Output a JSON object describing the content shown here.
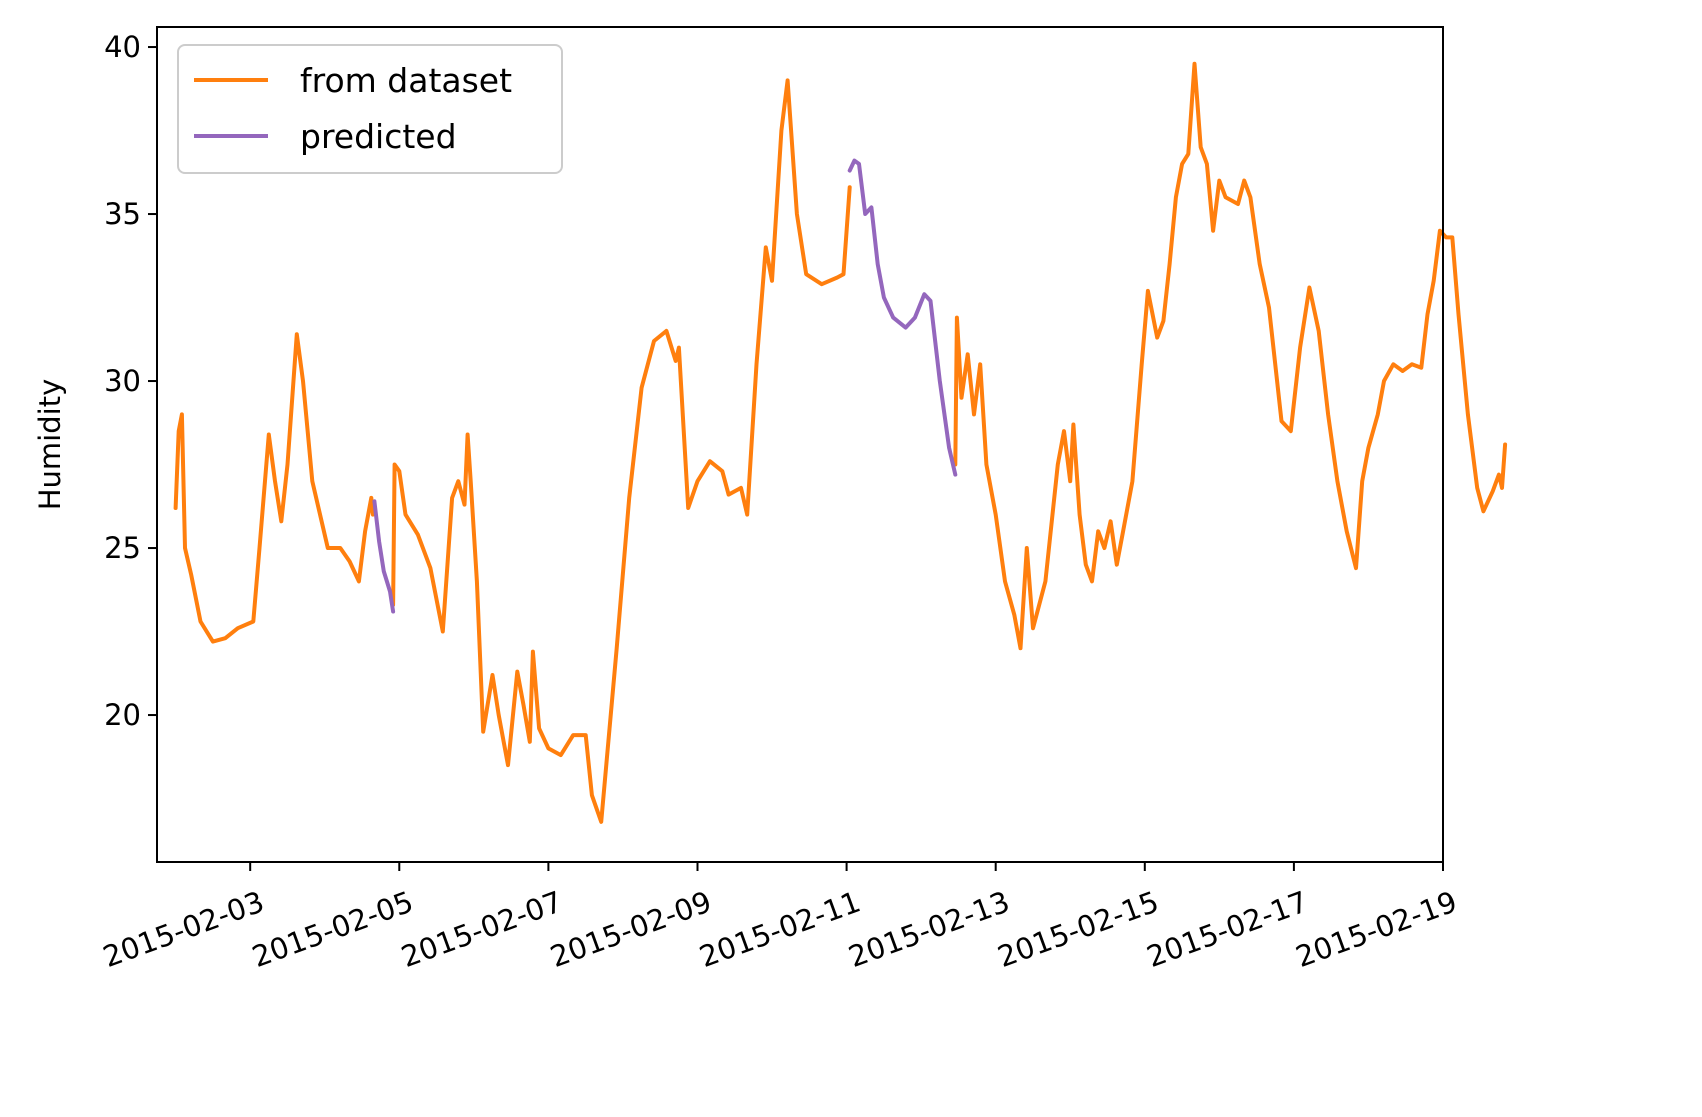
{
  "chart_data": {
    "type": "line",
    "title": "",
    "xlabel": "",
    "ylabel": "Humidity",
    "xlim": [
      "2015-02-01T18:00",
      "2015-02-19T00:00"
    ],
    "ylim": [
      15.6,
      40.6
    ],
    "grid": false,
    "legend_position": "top-left",
    "x_ticks": [
      "2015-02-03",
      "2015-02-05",
      "2015-02-07",
      "2015-02-09",
      "2015-02-11",
      "2015-02-13",
      "2015-02-15",
      "2015-02-17",
      "2015-02-19"
    ],
    "y_ticks": [
      "20",
      "25",
      "30",
      "35",
      "40"
    ],
    "series": [
      {
        "name": "from dataset",
        "color": "#ff7f0e",
        "segments": [
          [
            [
              "2015-02-02T00:00",
              26.2
            ],
            [
              "2015-02-02T01:00",
              28.5
            ],
            [
              "2015-02-02T02:00",
              29.0
            ],
            [
              "2015-02-02T03:00",
              25.0
            ],
            [
              "2015-02-02T05:00",
              24.2
            ],
            [
              "2015-02-02T08:00",
              22.8
            ],
            [
              "2015-02-02T12:00",
              22.2
            ],
            [
              "2015-02-02T16:00",
              22.3
            ],
            [
              "2015-02-02T20:00",
              22.6
            ],
            [
              "2015-02-03T01:00",
              22.8
            ],
            [
              "2015-02-03T03:00",
              25.0
            ],
            [
              "2015-02-03T06:00",
              28.4
            ],
            [
              "2015-02-03T08:00",
              27.0
            ],
            [
              "2015-02-03T10:00",
              25.8
            ],
            [
              "2015-02-03T12:00",
              27.5
            ],
            [
              "2015-02-03T15:00",
              31.4
            ],
            [
              "2015-02-03T17:00",
              30.0
            ],
            [
              "2015-02-03T20:00",
              27.0
            ],
            [
              "2015-02-04T01:00",
              25.0
            ],
            [
              "2015-02-04T05:00",
              25.0
            ],
            [
              "2015-02-04T08:00",
              24.6
            ],
            [
              "2015-02-04T11:00",
              24.0
            ],
            [
              "2015-02-04T13:00",
              25.5
            ],
            [
              "2015-02-04T15:00",
              26.5
            ],
            [
              "2015-02-04T15:30",
              26.0
            ]
          ],
          [
            [
              "2015-02-04T22:00",
              23.3
            ],
            [
              "2015-02-04T22:30",
              27.5
            ],
            [
              "2015-02-05T00:00",
              27.3
            ],
            [
              "2015-02-05T02:00",
              26.0
            ],
            [
              "2015-02-05T06:00",
              25.4
            ],
            [
              "2015-02-05T10:00",
              24.4
            ],
            [
              "2015-02-05T14:00",
              22.5
            ],
            [
              "2015-02-05T17:00",
              26.5
            ],
            [
              "2015-02-05T19:00",
              27.0
            ],
            [
              "2015-02-05T21:00",
              26.3
            ],
            [
              "2015-02-05T22:00",
              28.4
            ],
            [
              "2015-02-05T23:00",
              27.0
            ],
            [
              "2015-02-06T01:00",
              24.0
            ],
            [
              "2015-02-06T03:00",
              19.5
            ],
            [
              "2015-02-06T06:00",
              21.2
            ],
            [
              "2015-02-06T08:00",
              20.0
            ],
            [
              "2015-02-06T11:00",
              18.5
            ],
            [
              "2015-02-06T14:00",
              21.3
            ],
            [
              "2015-02-06T16:00",
              20.3
            ],
            [
              "2015-02-06T18:00",
              19.2
            ],
            [
              "2015-02-06T19:00",
              21.9
            ],
            [
              "2015-02-06T21:00",
              19.6
            ],
            [
              "2015-02-07T00:00",
              19.0
            ],
            [
              "2015-02-07T04:00",
              18.8
            ],
            [
              "2015-02-07T08:00",
              19.4
            ],
            [
              "2015-02-07T12:00",
              19.4
            ],
            [
              "2015-02-07T14:00",
              17.6
            ],
            [
              "2015-02-07T17:00",
              16.8
            ],
            [
              "2015-02-07T22:00",
              22.0
            ],
            [
              "2015-02-08T02:00",
              26.5
            ],
            [
              "2015-02-08T06:00",
              29.8
            ],
            [
              "2015-02-08T10:00",
              31.2
            ],
            [
              "2015-02-08T14:00",
              31.5
            ],
            [
              "2015-02-08T17:00",
              30.6
            ],
            [
              "2015-02-08T18:00",
              31.0
            ],
            [
              "2015-02-08T21:00",
              26.2
            ],
            [
              "2015-02-09T00:00",
              27.0
            ],
            [
              "2015-02-09T04:00",
              27.6
            ],
            [
              "2015-02-09T08:00",
              27.3
            ],
            [
              "2015-02-09T10:00",
              26.6
            ],
            [
              "2015-02-09T14:00",
              26.8
            ],
            [
              "2015-02-09T16:00",
              26.0
            ],
            [
              "2015-02-09T19:00",
              30.5
            ],
            [
              "2015-02-09T22:00",
              34.0
            ],
            [
              "2015-02-10T00:00",
              33.0
            ],
            [
              "2015-02-10T03:00",
              37.5
            ],
            [
              "2015-02-10T05:00",
              39.0
            ],
            [
              "2015-02-10T08:00",
              35.0
            ],
            [
              "2015-02-10T11:00",
              33.2
            ],
            [
              "2015-02-10T16:00",
              32.9
            ],
            [
              "2015-02-10T21:00",
              33.1
            ],
            [
              "2015-02-10T23:00",
              33.2
            ],
            [
              "2015-02-11T01:00",
              35.8
            ]
          ],
          [
            [
              "2015-02-12T11:00",
              27.5
            ],
            [
              "2015-02-12T11:30",
              31.9
            ],
            [
              "2015-02-12T13:00",
              29.5
            ],
            [
              "2015-02-12T15:00",
              30.8
            ],
            [
              "2015-02-12T17:00",
              29.0
            ],
            [
              "2015-02-12T19:00",
              30.5
            ],
            [
              "2015-02-12T21:00",
              27.5
            ],
            [
              "2015-02-13T00:00",
              26.0
            ],
            [
              "2015-02-13T03:00",
              24.0
            ],
            [
              "2015-02-13T06:00",
              23.0
            ],
            [
              "2015-02-13T08:00",
              22.0
            ],
            [
              "2015-02-13T10:00",
              25.0
            ],
            [
              "2015-02-13T12:00",
              22.6
            ],
            [
              "2015-02-13T16:00",
              24.0
            ],
            [
              "2015-02-13T20:00",
              27.5
            ],
            [
              "2015-02-13T22:00",
              28.5
            ],
            [
              "2015-02-14T00:00",
              27.0
            ],
            [
              "2015-02-14T01:00",
              28.7
            ],
            [
              "2015-02-14T03:00",
              26.0
            ],
            [
              "2015-02-14T05:00",
              24.5
            ],
            [
              "2015-02-14T07:00",
              24.0
            ],
            [
              "2015-02-14T09:00",
              25.5
            ],
            [
              "2015-02-14T11:00",
              25.0
            ],
            [
              "2015-02-14T13:00",
              25.8
            ],
            [
              "2015-02-14T15:00",
              24.5
            ],
            [
              "2015-02-14T17:00",
              25.5
            ],
            [
              "2015-02-14T20:00",
              27.0
            ],
            [
              "2015-02-14T23:00",
              30.5
            ],
            [
              "2015-02-15T01:00",
              32.7
            ],
            [
              "2015-02-15T04:00",
              31.3
            ],
            [
              "2015-02-15T06:00",
              31.8
            ],
            [
              "2015-02-15T08:00",
              33.5
            ],
            [
              "2015-02-15T10:00",
              35.5
            ],
            [
              "2015-02-15T12:00",
              36.5
            ],
            [
              "2015-02-15T14:00",
              36.8
            ],
            [
              "2015-02-15T16:00",
              39.5
            ],
            [
              "2015-02-15T18:00",
              37.0
            ],
            [
              "2015-02-15T20:00",
              36.5
            ],
            [
              "2015-02-15T22:00",
              34.5
            ],
            [
              "2015-02-16T00:00",
              36.0
            ],
            [
              "2015-02-16T02:00",
              35.5
            ],
            [
              "2015-02-16T06:00",
              35.3
            ],
            [
              "2015-02-16T08:00",
              36.0
            ],
            [
              "2015-02-16T10:00",
              35.5
            ],
            [
              "2015-02-16T13:00",
              33.5
            ],
            [
              "2015-02-16T16:00",
              32.2
            ],
            [
              "2015-02-16T20:00",
              28.8
            ],
            [
              "2015-02-16T23:00",
              28.5
            ],
            [
              "2015-02-17T02:00",
              31.0
            ],
            [
              "2015-02-17T05:00",
              32.8
            ],
            [
              "2015-02-17T08:00",
              31.5
            ],
            [
              "2015-02-17T11:00",
              29.0
            ],
            [
              "2015-02-17T14:00",
              27.0
            ],
            [
              "2015-02-17T17:00",
              25.5
            ],
            [
              "2015-02-17T20:00",
              24.4
            ],
            [
              "2015-02-17T22:00",
              27.0
            ],
            [
              "2015-02-18T00:00",
              28.0
            ],
            [
              "2015-02-18T03:00",
              29.0
            ],
            [
              "2015-02-18T05:00",
              30.0
            ],
            [
              "2015-02-18T08:00",
              30.5
            ],
            [
              "2015-02-18T11:00",
              30.3
            ],
            [
              "2015-02-18T14:00",
              30.5
            ],
            [
              "2015-02-18T17:00",
              30.4
            ],
            [
              "2015-02-18T19:00",
              32.0
            ],
            [
              "2015-02-18T21:00",
              33.0
            ],
            [
              "2015-02-18T23:00",
              34.5
            ],
            [
              "2015-02-19T01:00",
              34.3
            ],
            [
              "2015-02-19T03:00",
              34.3
            ],
            [
              "2015-02-19T05:00",
              32.0
            ],
            [
              "2015-02-19T08:00",
              29.0
            ],
            [
              "2015-02-19T11:00",
              26.8
            ],
            [
              "2015-02-19T13:00",
              26.1
            ],
            [
              "2015-02-19T16:00",
              26.7
            ],
            [
              "2015-02-19T18:00",
              27.2
            ],
            [
              "2015-02-19T19:00",
              26.8
            ],
            [
              "2015-02-19T20:00",
              28.1
            ]
          ]
        ]
      },
      {
        "name": "predicted",
        "color": "#9467bd",
        "segments": [
          [
            [
              "2015-02-04T16:00",
              26.4
            ],
            [
              "2015-02-04T17:30",
              25.2
            ],
            [
              "2015-02-04T19:00",
              24.3
            ],
            [
              "2015-02-04T20:00",
              24.0
            ],
            [
              "2015-02-04T21:00",
              23.7
            ],
            [
              "2015-02-04T22:00",
              23.1
            ]
          ],
          [
            [
              "2015-02-11T01:00",
              36.3
            ],
            [
              "2015-02-11T02:30",
              36.6
            ],
            [
              "2015-02-11T04:00",
              36.5
            ],
            [
              "2015-02-11T06:00",
              35.0
            ],
            [
              "2015-02-11T08:00",
              35.2
            ],
            [
              "2015-02-11T10:00",
              33.5
            ],
            [
              "2015-02-11T12:00",
              32.5
            ],
            [
              "2015-02-11T15:00",
              31.9
            ],
            [
              "2015-02-11T19:00",
              31.6
            ],
            [
              "2015-02-11T22:00",
              31.9
            ],
            [
              "2015-02-12T01:00",
              32.6
            ],
            [
              "2015-02-12T03:00",
              32.4
            ],
            [
              "2015-02-12T06:00",
              30.0
            ],
            [
              "2015-02-12T09:00",
              28.0
            ],
            [
              "2015-02-12T11:00",
              27.2
            ]
          ]
        ]
      }
    ]
  }
}
